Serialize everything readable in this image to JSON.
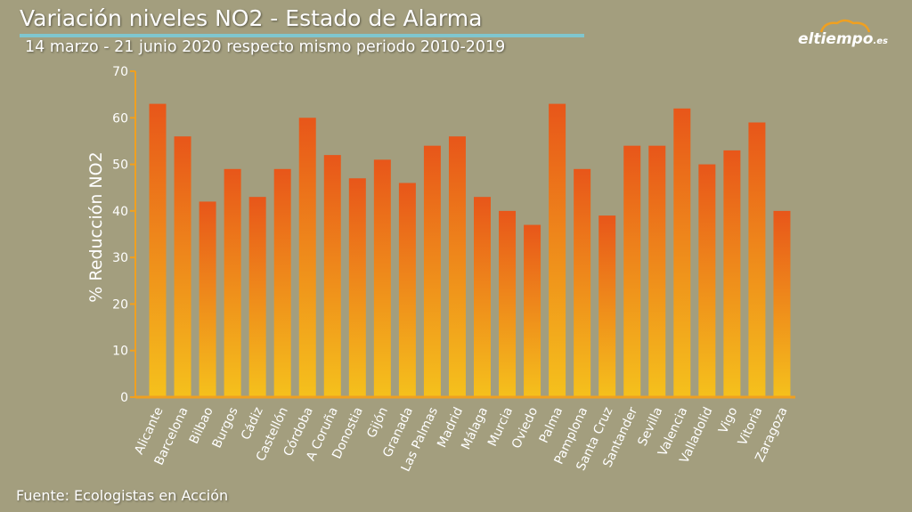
{
  "header": {
    "title": "Variación niveles NO2 - Estado de Alarma",
    "subtitle": "14 marzo - 21 junio 2020 respecto mismo periodo 2010-2019"
  },
  "brand": {
    "logo_text": "eltiempo",
    "logo_suffix": ".es",
    "logo_icon": "cloud-icon"
  },
  "footer": {
    "source": "Fuente: Ecologistas en Acción"
  },
  "colors": {
    "background": "#a39e7e",
    "bar_top": "#e8561a",
    "bar_bottom": "#f5c11c",
    "axis": "#f0a020",
    "title_rule": "#7fc6cf"
  },
  "chart_data": {
    "type": "bar",
    "ylabel": "% Reducción NO2",
    "xlabel": "",
    "ylim": [
      0,
      70
    ],
    "yticks": [
      0,
      10,
      20,
      30,
      40,
      50,
      60,
      70
    ],
    "grid": false,
    "categories": [
      "Alicante",
      "Barcelona",
      "Bilbao",
      "Burgos",
      "Cádiz",
      "Castellón",
      "Córdoba",
      "A Coruña",
      "Donostia",
      "Gijón",
      "Granada",
      "Las Palmas",
      "Madrid",
      "Málaga",
      "Murcia",
      "Oviedo",
      "Palma",
      "Pamplona",
      "Santa Cruz",
      "Santander",
      "Sevilla",
      "Valencia",
      "Valladolid",
      "Vigo",
      "Vitoria",
      "Zaragoza"
    ],
    "values": [
      63,
      56,
      42,
      49,
      43,
      49,
      60,
      52,
      47,
      51,
      46,
      54,
      56,
      43,
      40,
      37,
      63,
      49,
      39,
      54,
      54,
      62,
      50,
      53,
      59,
      40
    ]
  }
}
